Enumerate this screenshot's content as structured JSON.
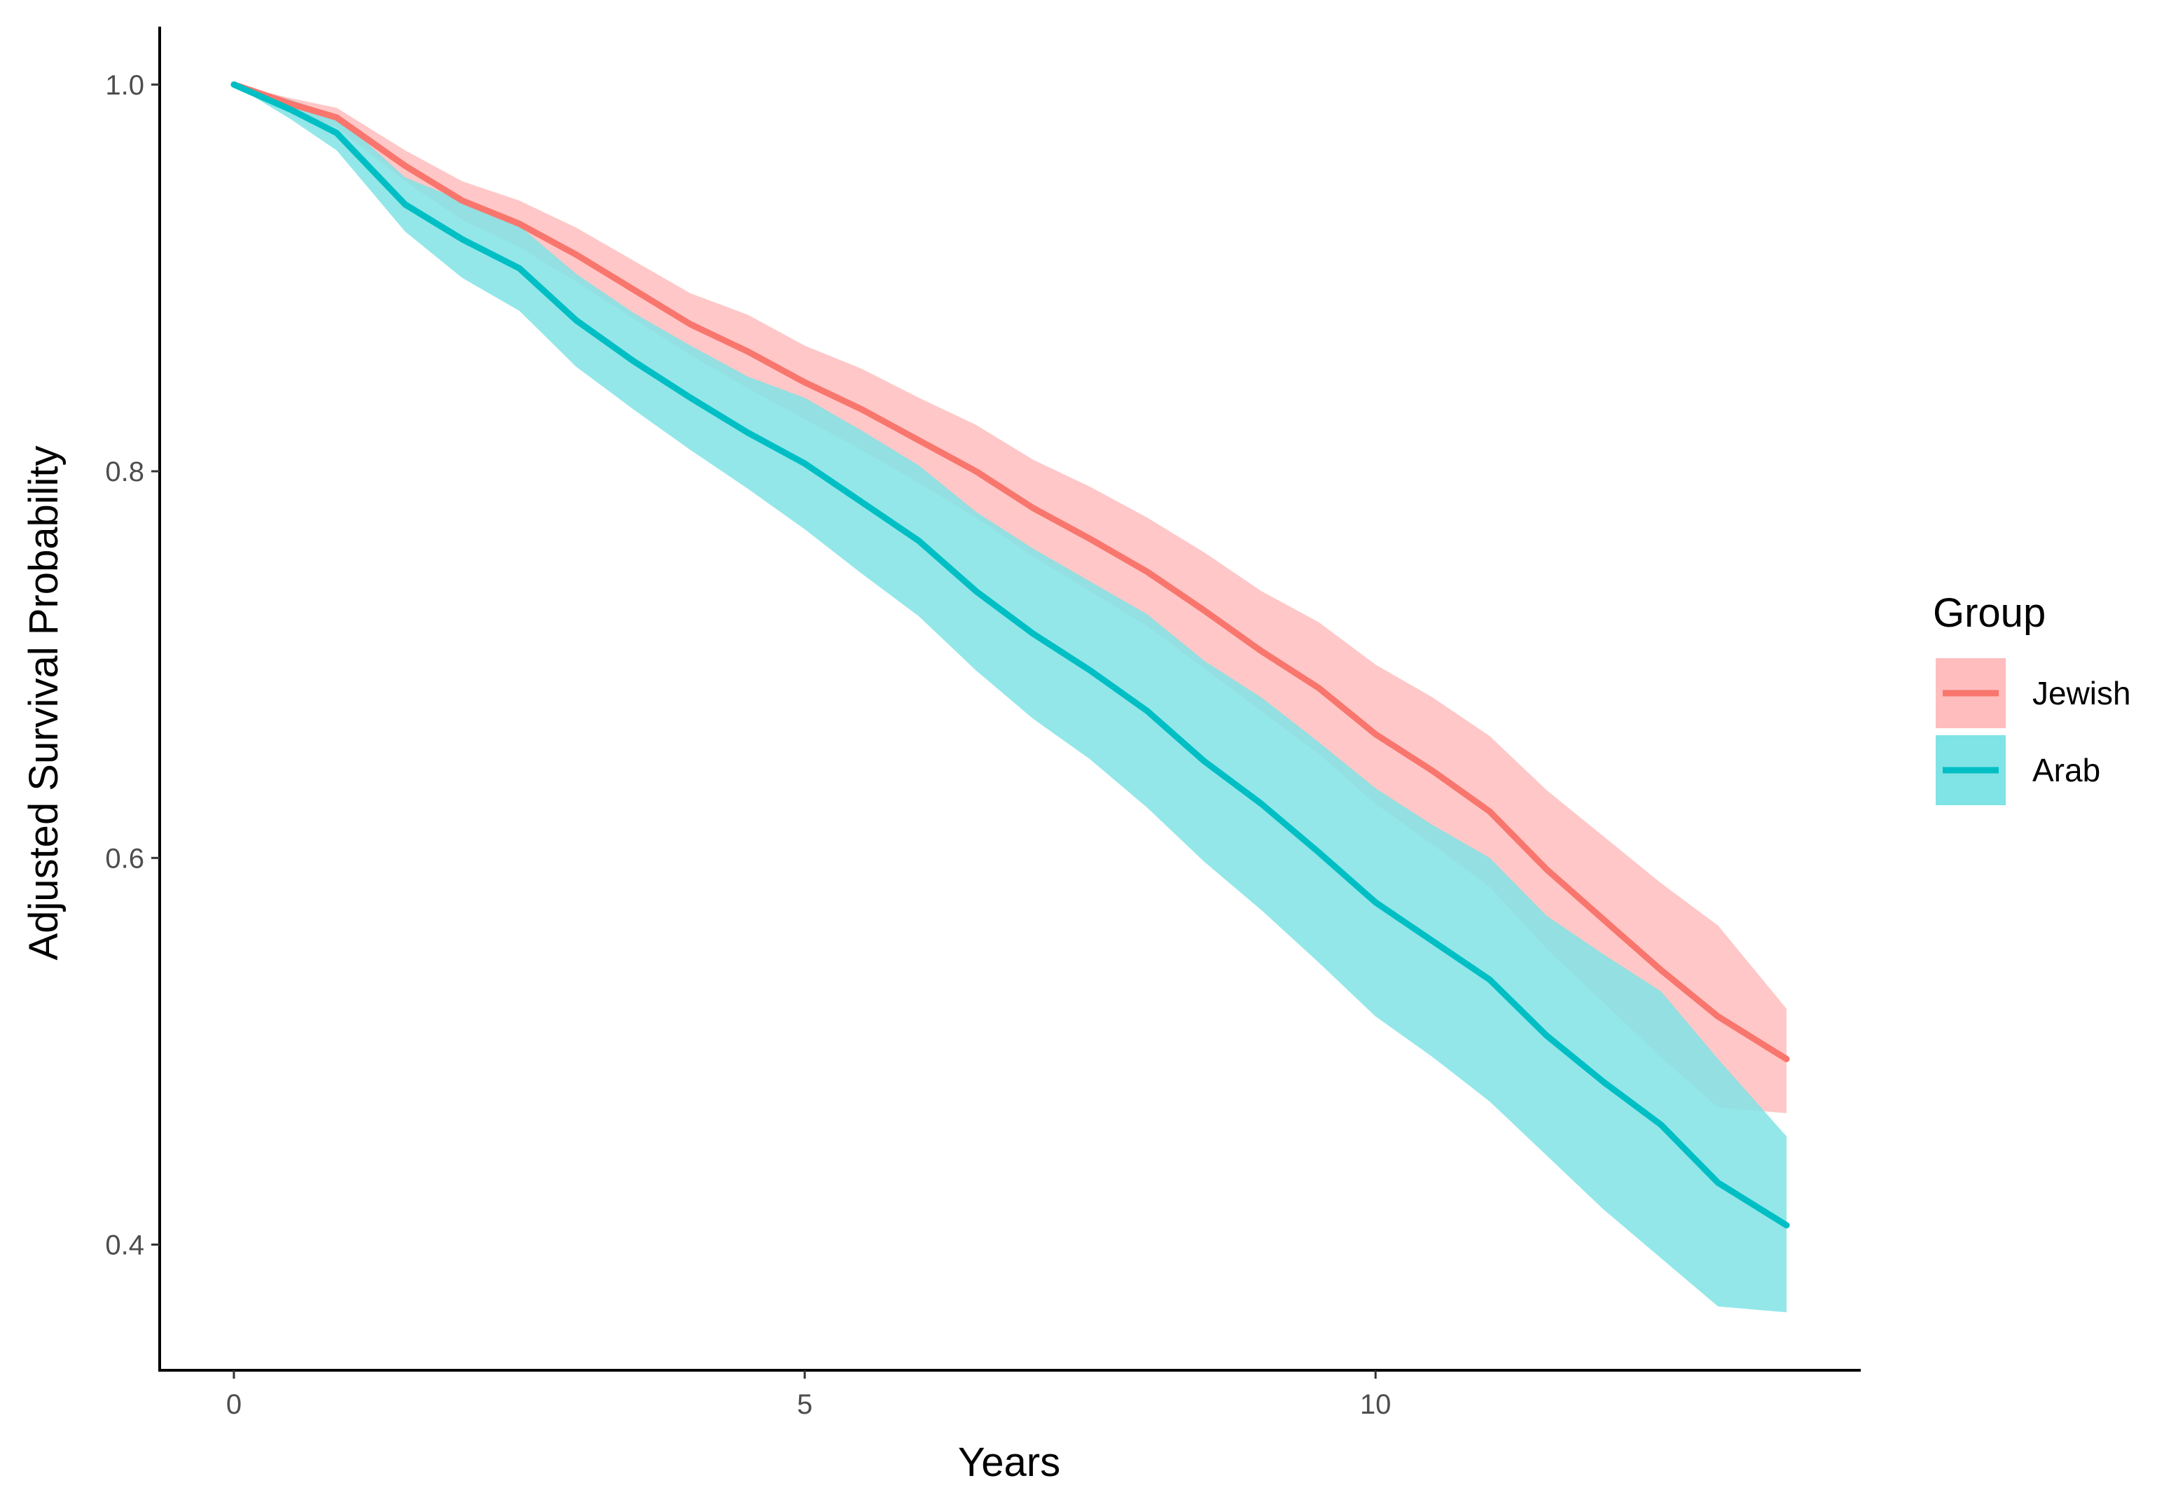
{
  "chart_data": {
    "type": "line",
    "title": "",
    "xlabel": "Years",
    "ylabel": "Adjusted Survival Probability",
    "xlim": [
      -0.65,
      14.25
    ],
    "ylim": [
      0.335,
      1.03
    ],
    "x_ticks": [
      0,
      5,
      10
    ],
    "x_tick_labels": [
      "0",
      "5",
      "10"
    ],
    "y_ticks": [
      0.4,
      0.6,
      0.8,
      1.0
    ],
    "y_tick_labels": [
      "0.4",
      "0.6",
      "0.8",
      "1.0"
    ],
    "grid": false,
    "legend": {
      "title": "Group",
      "placement": "right"
    },
    "series": [
      {
        "name": "Jewish",
        "color": "#F8766D",
        "band_color": "#FFBDBD",
        "x": [
          0,
          0.5,
          0.9,
          1.5,
          2.0,
          2.5,
          3.0,
          3.5,
          4.0,
          4.5,
          5.0,
          5.5,
          6.0,
          6.5,
          7.0,
          7.5,
          8.0,
          8.5,
          9.0,
          9.5,
          10.0,
          10.5,
          11.0,
          11.5,
          12.0,
          12.5,
          13.0,
          13.6
        ],
        "values": [
          1.0,
          0.99,
          0.983,
          0.958,
          0.94,
          0.928,
          0.912,
          0.894,
          0.876,
          0.862,
          0.846,
          0.832,
          0.816,
          0.8,
          0.781,
          0.765,
          0.748,
          0.728,
          0.707,
          0.688,
          0.664,
          0.645,
          0.624,
          0.594,
          0.568,
          0.542,
          0.518,
          0.496
        ],
        "lower": [
          1.0,
          0.987,
          0.978,
          0.95,
          0.93,
          0.916,
          0.898,
          0.879,
          0.86,
          0.843,
          0.827,
          0.811,
          0.794,
          0.776,
          0.756,
          0.738,
          0.72,
          0.698,
          0.676,
          0.654,
          0.628,
          0.607,
          0.585,
          0.553,
          0.525,
          0.497,
          0.471,
          0.468
        ],
        "upper": [
          1.0,
          0.993,
          0.988,
          0.966,
          0.95,
          0.94,
          0.926,
          0.909,
          0.892,
          0.881,
          0.865,
          0.853,
          0.838,
          0.824,
          0.806,
          0.792,
          0.776,
          0.758,
          0.738,
          0.722,
          0.7,
          0.683,
          0.663,
          0.635,
          0.611,
          0.587,
          0.565,
          0.522
        ]
      },
      {
        "name": "Arab",
        "color": "#00BFC4",
        "band_color": "#80E3E5",
        "x": [
          0,
          0.5,
          0.9,
          1.5,
          2.0,
          2.5,
          3.0,
          3.5,
          4.0,
          4.5,
          5.0,
          5.5,
          6.0,
          6.5,
          7.0,
          7.5,
          8.0,
          8.5,
          9.0,
          9.5,
          10.0,
          10.5,
          11.0,
          11.5,
          12.0,
          12.5,
          13.0,
          13.6
        ],
        "values": [
          1.0,
          0.987,
          0.975,
          0.938,
          0.92,
          0.905,
          0.878,
          0.857,
          0.838,
          0.82,
          0.804,
          0.784,
          0.764,
          0.738,
          0.716,
          0.697,
          0.676,
          0.65,
          0.628,
          0.603,
          0.577,
          0.557,
          0.537,
          0.508,
          0.484,
          0.462,
          0.432,
          0.41
        ],
        "lower": [
          1.0,
          0.982,
          0.966,
          0.924,
          0.9,
          0.883,
          0.854,
          0.832,
          0.811,
          0.791,
          0.77,
          0.747,
          0.725,
          0.697,
          0.672,
          0.651,
          0.626,
          0.598,
          0.573,
          0.546,
          0.518,
          0.497,
          0.474,
          0.446,
          0.418,
          0.393,
          0.368,
          0.365
        ],
        "upper": [
          1.0,
          0.992,
          0.984,
          0.952,
          0.94,
          0.927,
          0.902,
          0.882,
          0.865,
          0.849,
          0.838,
          0.821,
          0.803,
          0.779,
          0.76,
          0.743,
          0.726,
          0.702,
          0.683,
          0.66,
          0.636,
          0.617,
          0.6,
          0.57,
          0.55,
          0.531,
          0.496,
          0.456
        ]
      }
    ]
  }
}
